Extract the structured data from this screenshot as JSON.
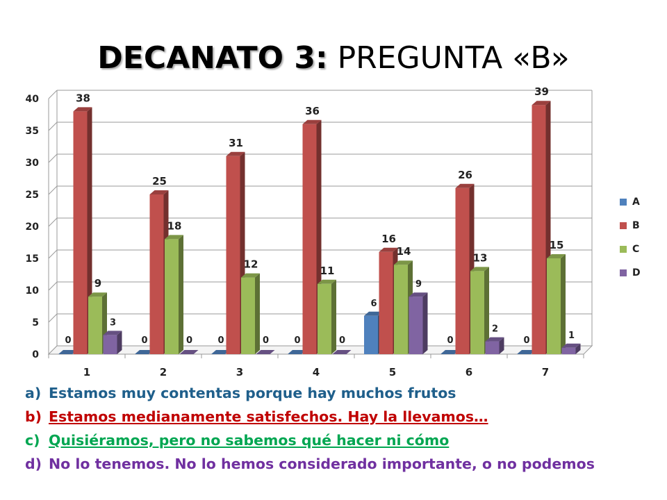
{
  "slide": {
    "title_bold": "DECANATO 3:",
    "title_rest": " PREGUNTA «B»"
  },
  "chart_data": {
    "type": "bar",
    "categories": [
      "1",
      "2",
      "3",
      "4",
      "5",
      "6",
      "7"
    ],
    "series": [
      {
        "name": "A",
        "color": "#4F81BD",
        "values": [
          0,
          0,
          0,
          0,
          6,
          0,
          0
        ]
      },
      {
        "name": "B",
        "color": "#C0504D",
        "values": [
          38,
          25,
          31,
          36,
          16,
          26,
          39
        ]
      },
      {
        "name": "C",
        "color": "#9BBB59",
        "values": [
          9,
          18,
          12,
          11,
          14,
          13,
          15
        ]
      },
      {
        "name": "D",
        "color": "#8064A2",
        "values": [
          3,
          0,
          0,
          0,
          9,
          2,
          1
        ]
      }
    ],
    "ylim": [
      0,
      40
    ],
    "yticks": [
      0,
      5,
      10,
      15,
      20,
      25,
      30,
      35,
      40
    ],
    "grid": true,
    "legend_position": "right",
    "three_d": true
  },
  "answer_options": [
    {
      "letter": "a)",
      "text": "Estamos muy contentas porque hay muchos frutos"
    },
    {
      "letter": "b)",
      "text": "Estamos medianamente satisfechos. Hay la llevamos…"
    },
    {
      "letter": "c)",
      "text": "Quisiéramos, pero no sabemos qué hacer ni cómo"
    },
    {
      "letter": "d)",
      "text": "No lo tenemos. No lo hemos considerado importante, o no podemos"
    }
  ]
}
